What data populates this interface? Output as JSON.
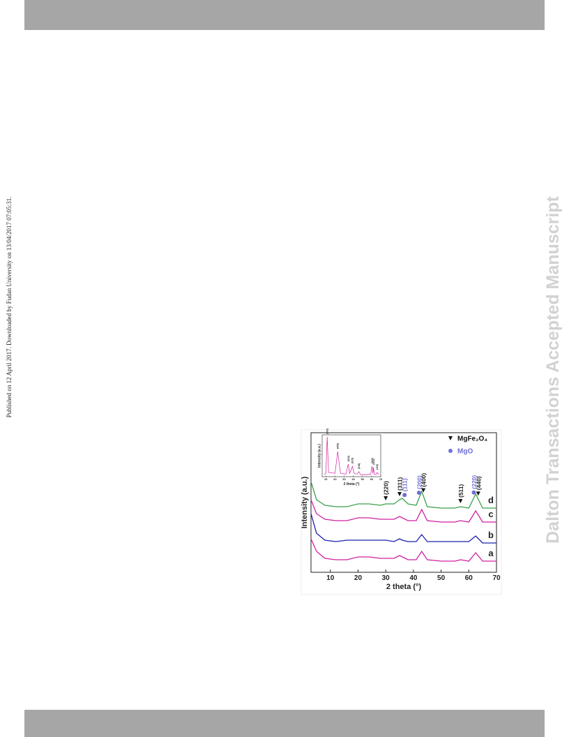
{
  "publication_note": "Published on 12 April 2017. Downloaded by Fudan University on 13/04/2017 07:05:31.",
  "watermark": "Dalton Transactions Accepted Manuscript",
  "chart_data": [
    {
      "type": "line",
      "x_label": "2 theta (°)",
      "y_label": "Intensity (a.u.)",
      "x": [
        3,
        5,
        8,
        12,
        16,
        20,
        24,
        28,
        30,
        33,
        35,
        36,
        38,
        41,
        43,
        45,
        50,
        55,
        57,
        60,
        62.5,
        65,
        70
      ],
      "xlim": [
        3,
        70
      ],
      "xticks": [
        10,
        20,
        30,
        40,
        50,
        60,
        70
      ],
      "ylim": [
        0,
        100
      ],
      "series": [
        {
          "name": "a",
          "color": "#d020a0",
          "values": [
            24,
            15,
            10,
            9,
            9,
            11,
            11,
            10,
            10,
            10,
            12,
            11,
            9,
            9,
            15,
            9,
            8,
            8,
            9,
            8,
            14,
            8,
            8
          ]
        },
        {
          "name": "b",
          "color": "#1a20b0",
          "values": [
            42,
            28,
            23,
            22,
            23,
            23,
            23,
            23,
            23,
            22,
            24,
            23,
            22,
            22,
            27,
            22,
            22,
            22,
            22,
            22,
            26,
            21,
            21
          ]
        },
        {
          "name": "c",
          "color": "#d020a0",
          "values": [
            52,
            42,
            38,
            37,
            37,
            39,
            39,
            38,
            38,
            38,
            40,
            39,
            37,
            37,
            45,
            37,
            36,
            36,
            37,
            36,
            44,
            36,
            36
          ]
        },
        {
          "name": "d",
          "color": "#3aa04a",
          "values": [
            65,
            52,
            48,
            47,
            47,
            49,
            49,
            48,
            49,
            49,
            52,
            53,
            49,
            48,
            58,
            47,
            46,
            46,
            47,
            46,
            56,
            46,
            46
          ]
        }
      ],
      "annotations": [
        {
          "label": "(220)",
          "x": 30,
          "marker": "triangle"
        },
        {
          "label": "(311)",
          "x": 35,
          "marker": "triangle"
        },
        {
          "label": "(111)",
          "x": 36.8,
          "marker": "circle"
        },
        {
          "label": "(200)",
          "x": 42,
          "marker": "circle"
        },
        {
          "label": "(400)",
          "x": 43.6,
          "marker": "triangle"
        },
        {
          "label": "(511)",
          "x": 57,
          "marker": "triangle"
        },
        {
          "label": "(220)",
          "x": 61.8,
          "marker": "circle"
        },
        {
          "label": "(440)",
          "x": 63.4,
          "marker": "triangle"
        }
      ],
      "legend": [
        {
          "name": "MgFe₂O₄",
          "marker": "triangle",
          "color": "#111111"
        },
        {
          "name": "MgO",
          "marker": "circle",
          "color": "#6f6fd6"
        }
      ]
    },
    {
      "type": "line",
      "x_label": "2 theta (°)",
      "y_label": "Intensity (a.u.)",
      "x": [
        8,
        10,
        11.5,
        13,
        20,
        23,
        26,
        32,
        34.5,
        36,
        38,
        39,
        41,
        44,
        46,
        48,
        55,
        59,
        60.5,
        61.5,
        62,
        63,
        65,
        66,
        68
      ],
      "xlim": [
        6,
        70
      ],
      "xticks": [
        10,
        20,
        30,
        40,
        50,
        60,
        70
      ],
      "ylim": [
        0,
        100
      ],
      "series": [
        {
          "color": "#d020a0",
          "values": [
            5,
            8,
            95,
            10,
            8,
            60,
            8,
            6,
            30,
            8,
            18,
            25,
            8,
            6,
            12,
            5,
            5,
            6,
            25,
            8,
            22,
            6,
            5,
            10,
            5
          ]
        }
      ],
      "annotations": [
        {
          "label": "(003)",
          "x": 11.5
        },
        {
          "label": "(006)",
          "x": 23
        },
        {
          "label": "(012)",
          "x": 34.5
        },
        {
          "label": "(015)",
          "x": 39
        },
        {
          "label": "(018)",
          "x": 46
        },
        {
          "label": "(110)",
          "x": 60.5
        },
        {
          "label": "(113)",
          "x": 62
        },
        {
          "label": "(116)",
          "x": 66
        }
      ]
    }
  ]
}
